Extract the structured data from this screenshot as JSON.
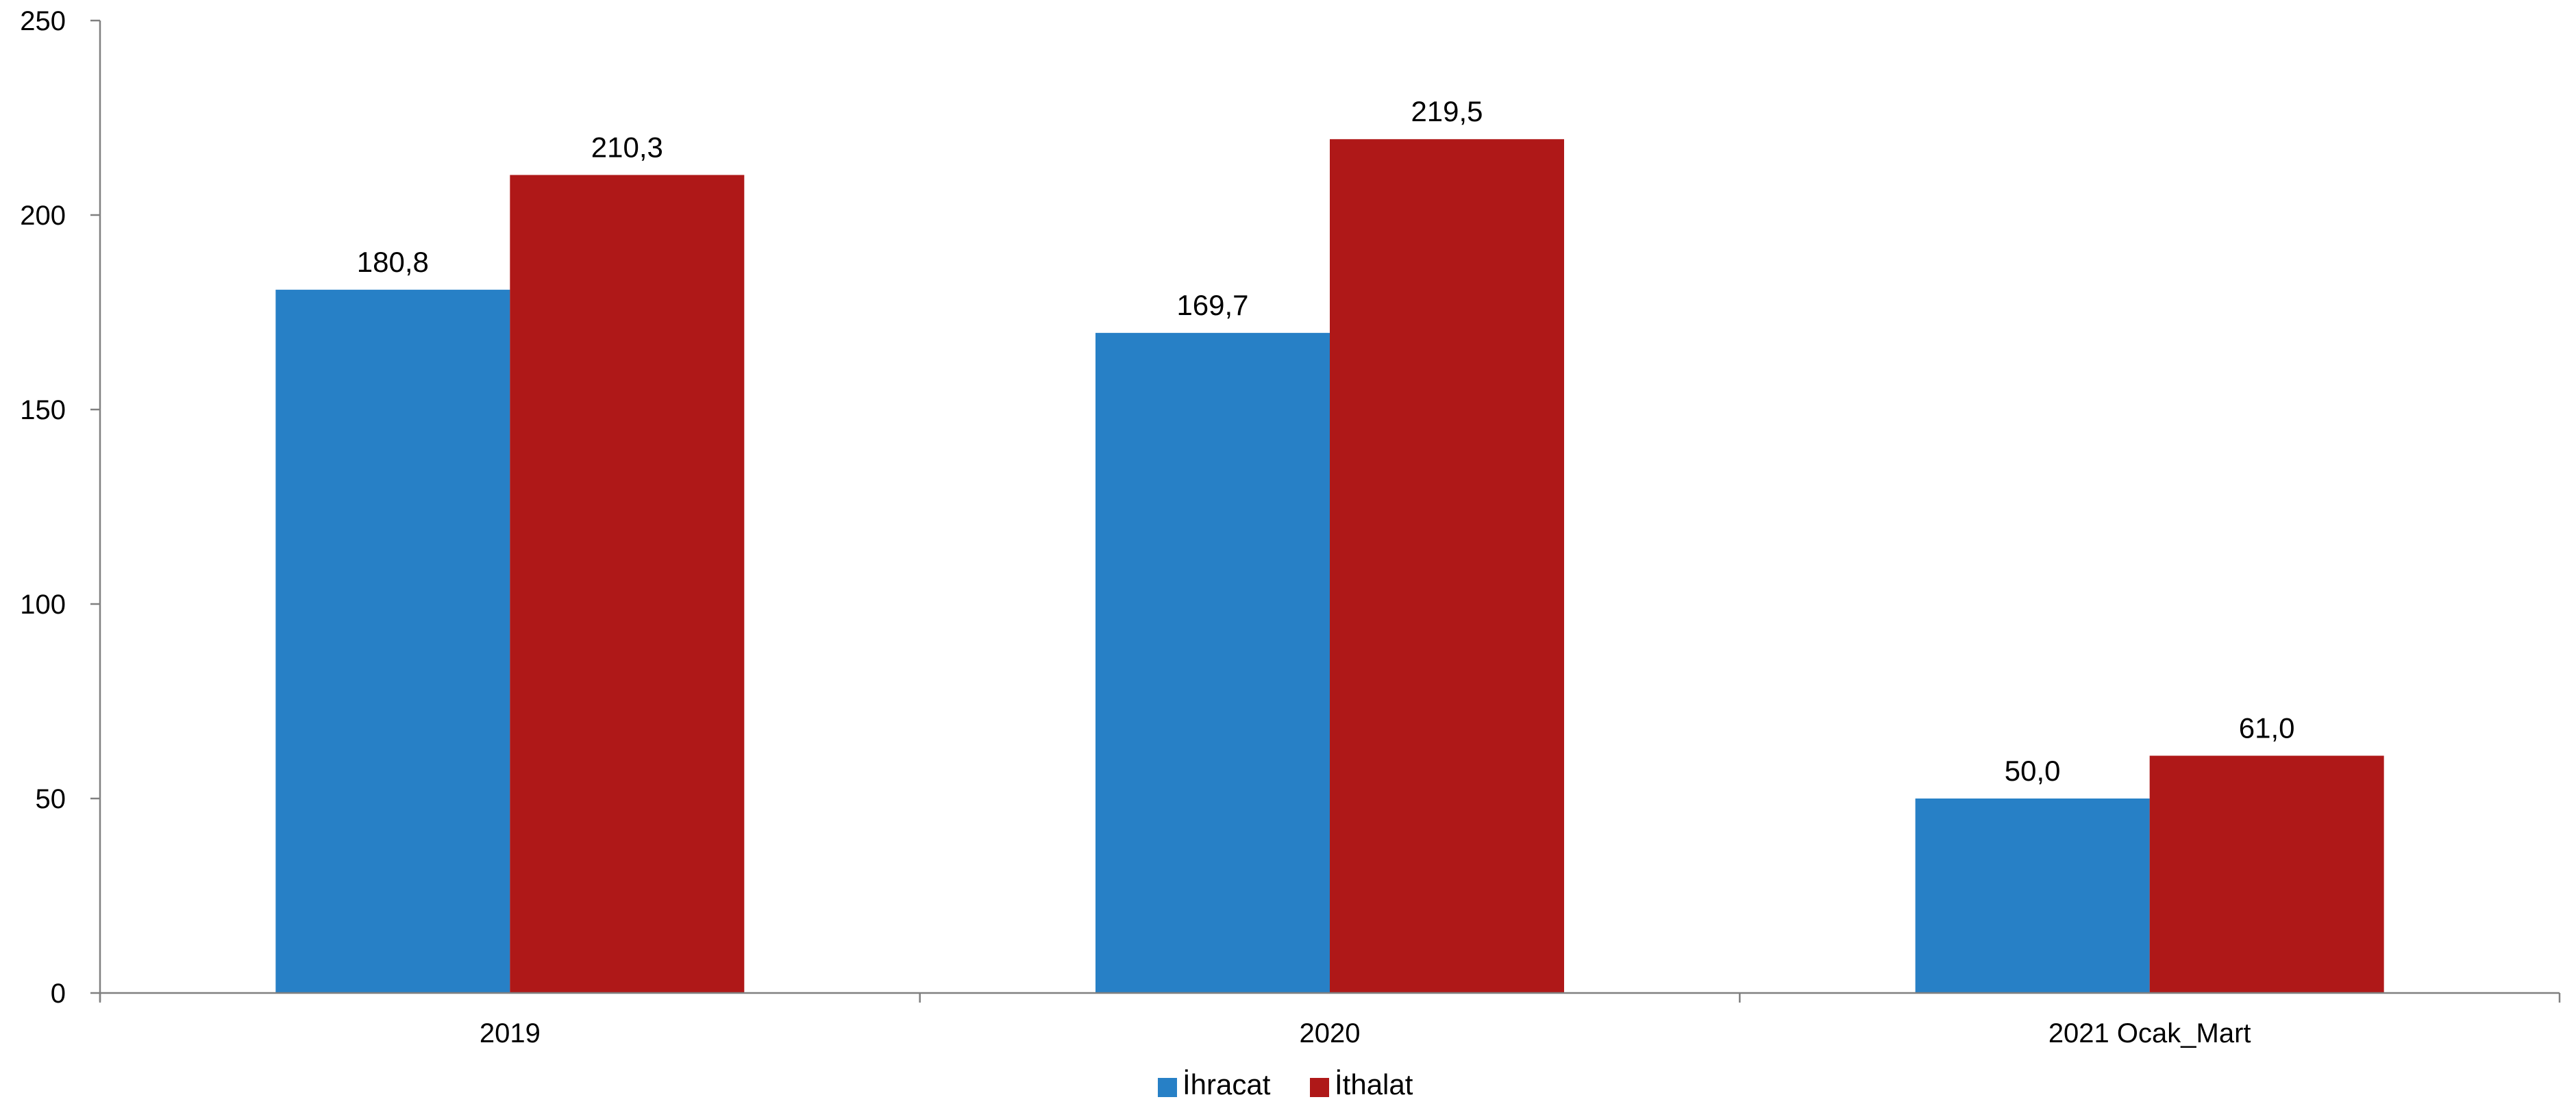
{
  "chart_data": {
    "type": "bar",
    "title": "",
    "xlabel": "",
    "ylabel": "",
    "categories": [
      "2019",
      "2020",
      "2021 Ocak_Mart"
    ],
    "series": [
      {
        "name": "İhracat",
        "color": "#2780C6",
        "values": [
          180.8,
          169.7,
          50.0
        ],
        "labels": [
          "180,8",
          "169,7",
          "50,0"
        ]
      },
      {
        "name": "İthalat",
        "color": "#AF1818",
        "values": [
          210.3,
          219.5,
          61.0
        ],
        "labels": [
          "210,3",
          "219,5",
          "61,0"
        ]
      }
    ],
    "ylim": [
      0,
      250
    ],
    "yticks": [
      0,
      50,
      100,
      150,
      200,
      250
    ],
    "ytick_labels": [
      "0",
      "50",
      "100",
      "150",
      "200",
      "250"
    ],
    "grid": false,
    "legend": "bottom-center"
  }
}
